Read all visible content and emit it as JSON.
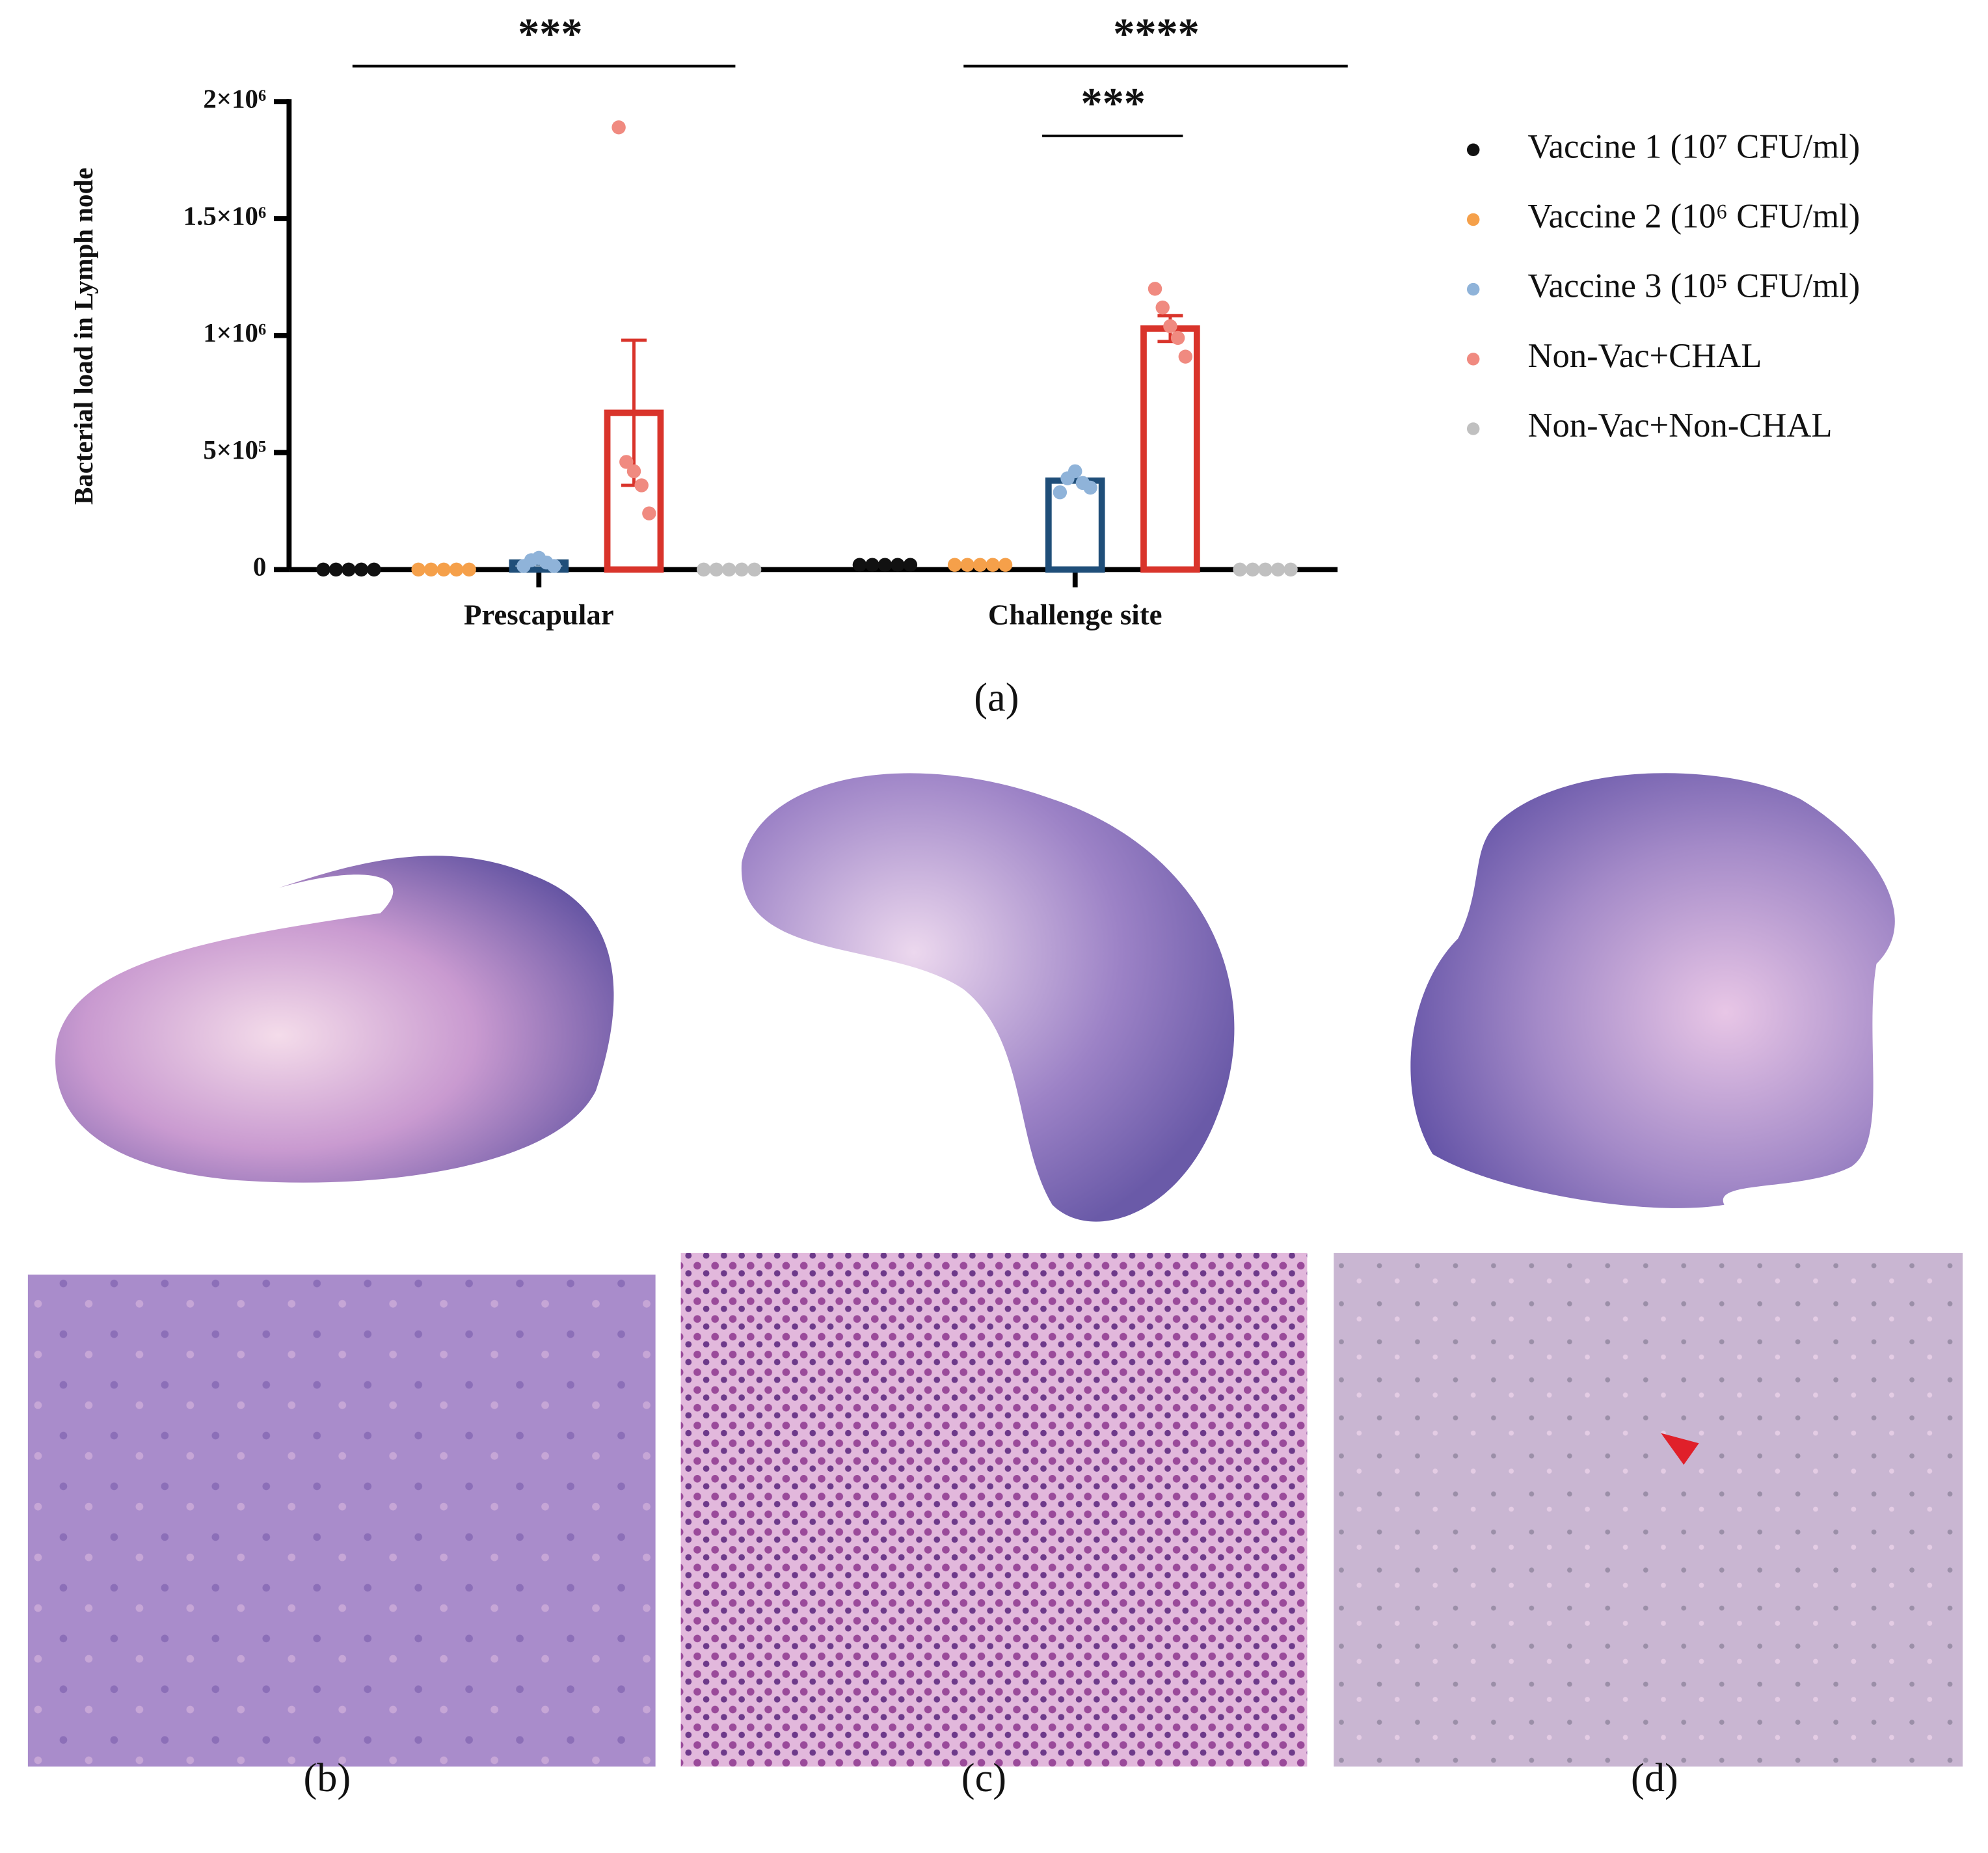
{
  "chart_data": {
    "type": "bar",
    "y_label": "Bacterial load in Lymph node",
    "categories": [
      "Prescapular",
      "Challenge site"
    ],
    "ylim": [
      0,
      2000000
    ],
    "yticks": [
      0,
      {
        "value": 500000,
        "label": "5×10⁵"
      },
      {
        "value": 1000000,
        "label": "1×10⁶"
      },
      {
        "value": 1500000,
        "label": "1.5×10⁶"
      },
      {
        "value": 2000000,
        "label": "2×10⁶"
      }
    ],
    "annotations": [
      "***",
      "****",
      "***"
    ],
    "series": [
      {
        "name": "Vaccine 1 (10⁷ CFU/ml)",
        "color": "#111111",
        "bar_color": "#111111",
        "values": [
          0,
          20000
        ],
        "points": [
          [
            0,
            0,
            0,
            0,
            0
          ],
          [
            20000,
            20000,
            20000,
            20000,
            20000
          ]
        ]
      },
      {
        "name": "Vaccine 2 (10⁶ CFU/ml)",
        "color": "#f5a04a",
        "bar_color": "#f5a04a",
        "values": [
          0,
          20000
        ],
        "points": [
          [
            0,
            0,
            0,
            0,
            0
          ],
          [
            20000,
            20000,
            20000,
            20000,
            20000
          ]
        ]
      },
      {
        "name": "Vaccine 3 (10⁵ CFU/ml)",
        "color": "#8fb3d9",
        "bar_color": "#1f4e79",
        "values": [
          30000,
          380000
        ],
        "points": [
          [
            15000,
            40000,
            50000,
            30000,
            15000
          ],
          [
            330000,
            390000,
            420000,
            370000,
            350000
          ]
        ]
      },
      {
        "name": "Non-Vac+CHAL",
        "color": "#f08a80",
        "bar_color": "#d9342b",
        "values": [
          670000,
          1030000
        ],
        "errors": [
          310000,
          55000
        ],
        "points": [
          [
            1890000,
            460000,
            420000,
            360000,
            240000
          ],
          [
            1200000,
            1120000,
            1040000,
            990000,
            910000
          ]
        ]
      },
      {
        "name": "Non-Vac+Non-CHAL",
        "color": "#c0c0c0",
        "bar_color": "#c0c0c0",
        "values": [
          0,
          0
        ],
        "points": [
          [
            0,
            0,
            0,
            0,
            0
          ],
          [
            0,
            0,
            0,
            0,
            0
          ]
        ]
      }
    ],
    "legend": "right"
  },
  "figure": {
    "panel_labels": [
      "(a)",
      "(b)",
      "(c)",
      "(d)"
    ]
  }
}
